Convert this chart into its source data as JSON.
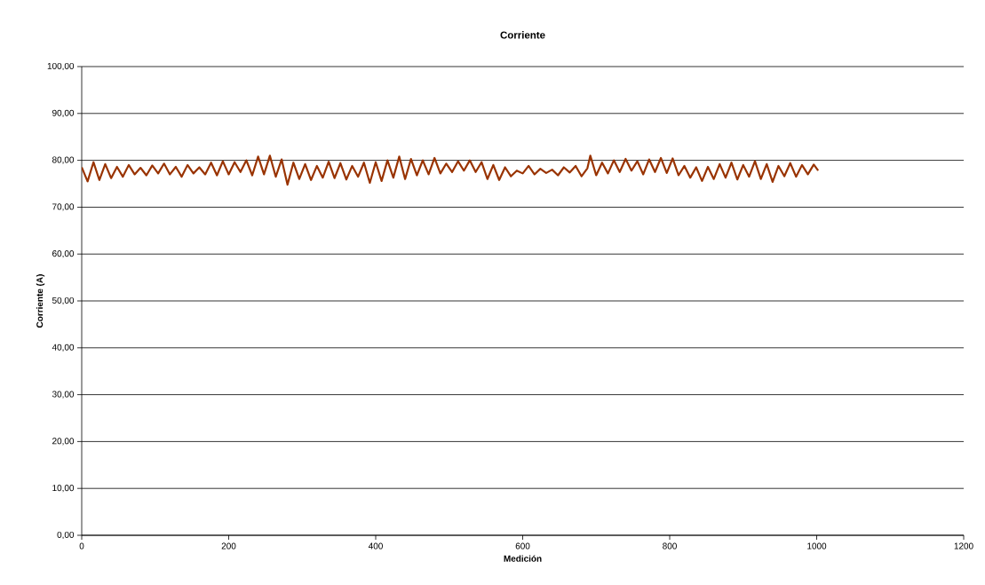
{
  "chart_data": {
    "type": "line",
    "title": "Corriente",
    "xlabel": "Medición",
    "ylabel": "Corriente (A)",
    "xlim": [
      0,
      1200
    ],
    "ylim": [
      0,
      100
    ],
    "xticks": [
      0,
      200,
      400,
      600,
      800,
      1000,
      1200
    ],
    "yticks": [
      {
        "value": 0,
        "label": "0,00"
      },
      {
        "value": 10,
        "label": "10,00"
      },
      {
        "value": 20,
        "label": "20,00"
      },
      {
        "value": 30,
        "label": "30,00"
      },
      {
        "value": 40,
        "label": "40,00"
      },
      {
        "value": 50,
        "label": "50,00"
      },
      {
        "value": 60,
        "label": "60,00"
      },
      {
        "value": 70,
        "label": "70,00"
      },
      {
        "value": 80,
        "label": "80,00"
      },
      {
        "value": 90,
        "label": "90,00"
      },
      {
        "value": 100,
        "label": "100,00"
      }
    ],
    "grid": "y",
    "marker": "none",
    "line_style": "solid",
    "x": [
      0,
      8,
      16,
      24,
      32,
      40,
      48,
      56,
      64,
      72,
      80,
      88,
      96,
      104,
      112,
      120,
      128,
      136,
      144,
      152,
      160,
      168,
      176,
      184,
      192,
      200,
      208,
      216,
      224,
      232,
      240,
      248,
      256,
      264,
      272,
      280,
      288,
      296,
      304,
      312,
      320,
      328,
      336,
      344,
      352,
      360,
      368,
      376,
      384,
      392,
      400,
      408,
      416,
      424,
      432,
      440,
      448,
      456,
      464,
      472,
      480,
      488,
      496,
      504,
      512,
      520,
      528,
      536,
      544,
      552,
      560,
      568,
      576,
      584,
      592,
      600,
      608,
      616,
      624,
      632,
      640,
      648,
      656,
      664,
      672,
      680,
      688,
      692,
      700,
      708,
      716,
      724,
      732,
      740,
      748,
      756,
      764,
      772,
      780,
      788,
      796,
      804,
      812,
      820,
      828,
      836,
      844,
      852,
      860,
      868,
      876,
      884,
      892,
      900,
      908,
      916,
      924,
      932,
      940,
      948,
      956,
      964,
      972,
      980,
      988,
      996,
      1002
    ],
    "series": [
      {
        "color": "#993300",
        "values": [
          78.5,
          75.5,
          79.6,
          75.8,
          79.2,
          76.2,
          78.6,
          76.5,
          79.0,
          77.0,
          78.4,
          76.8,
          78.9,
          77.2,
          79.3,
          77.0,
          78.6,
          76.5,
          79.0,
          77.2,
          78.5,
          77.0,
          79.5,
          76.8,
          79.8,
          77.0,
          79.6,
          77.5,
          80.0,
          76.8,
          80.8,
          77.0,
          81.0,
          76.5,
          80.2,
          74.8,
          79.5,
          76.0,
          79.2,
          75.8,
          78.8,
          76.3,
          79.7,
          76.2,
          79.4,
          75.9,
          78.8,
          76.5,
          79.5,
          75.2,
          79.6,
          75.6,
          80.0,
          76.3,
          80.8,
          76.0,
          80.3,
          76.8,
          80.0,
          77.0,
          80.5,
          77.2,
          79.3,
          77.5,
          79.8,
          77.8,
          80.0,
          77.5,
          79.6,
          76.0,
          79.0,
          75.8,
          78.5,
          76.6,
          77.8,
          77.2,
          78.8,
          77.0,
          78.2,
          77.3,
          78.0,
          76.8,
          78.5,
          77.4,
          78.8,
          76.6,
          78.3,
          81.0,
          76.8,
          79.5,
          77.2,
          80.0,
          77.5,
          80.3,
          77.8,
          79.8,
          77.0,
          80.2,
          77.5,
          80.5,
          77.3,
          80.4,
          76.8,
          78.8,
          76.3,
          78.5,
          75.6,
          78.6,
          76.0,
          79.2,
          76.3,
          79.5,
          75.9,
          79.0,
          76.5,
          79.8,
          76.0,
          79.2,
          75.4,
          78.8,
          76.6,
          79.4,
          76.5,
          79.0,
          77.0,
          79.1,
          77.8
        ]
      }
    ]
  }
}
